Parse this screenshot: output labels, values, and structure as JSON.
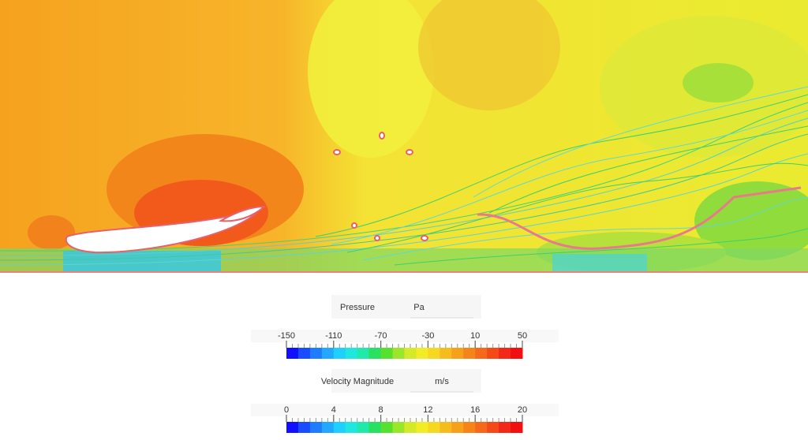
{
  "legends": [
    {
      "title": "Pressure",
      "unit": "Pa",
      "ticks": [
        -150,
        -110,
        -70,
        -30,
        10,
        50
      ]
    },
    {
      "title": "Velocity Magnitude",
      "unit": "m/s",
      "ticks": [
        0,
        4,
        8,
        12,
        16,
        20
      ]
    }
  ]
}
